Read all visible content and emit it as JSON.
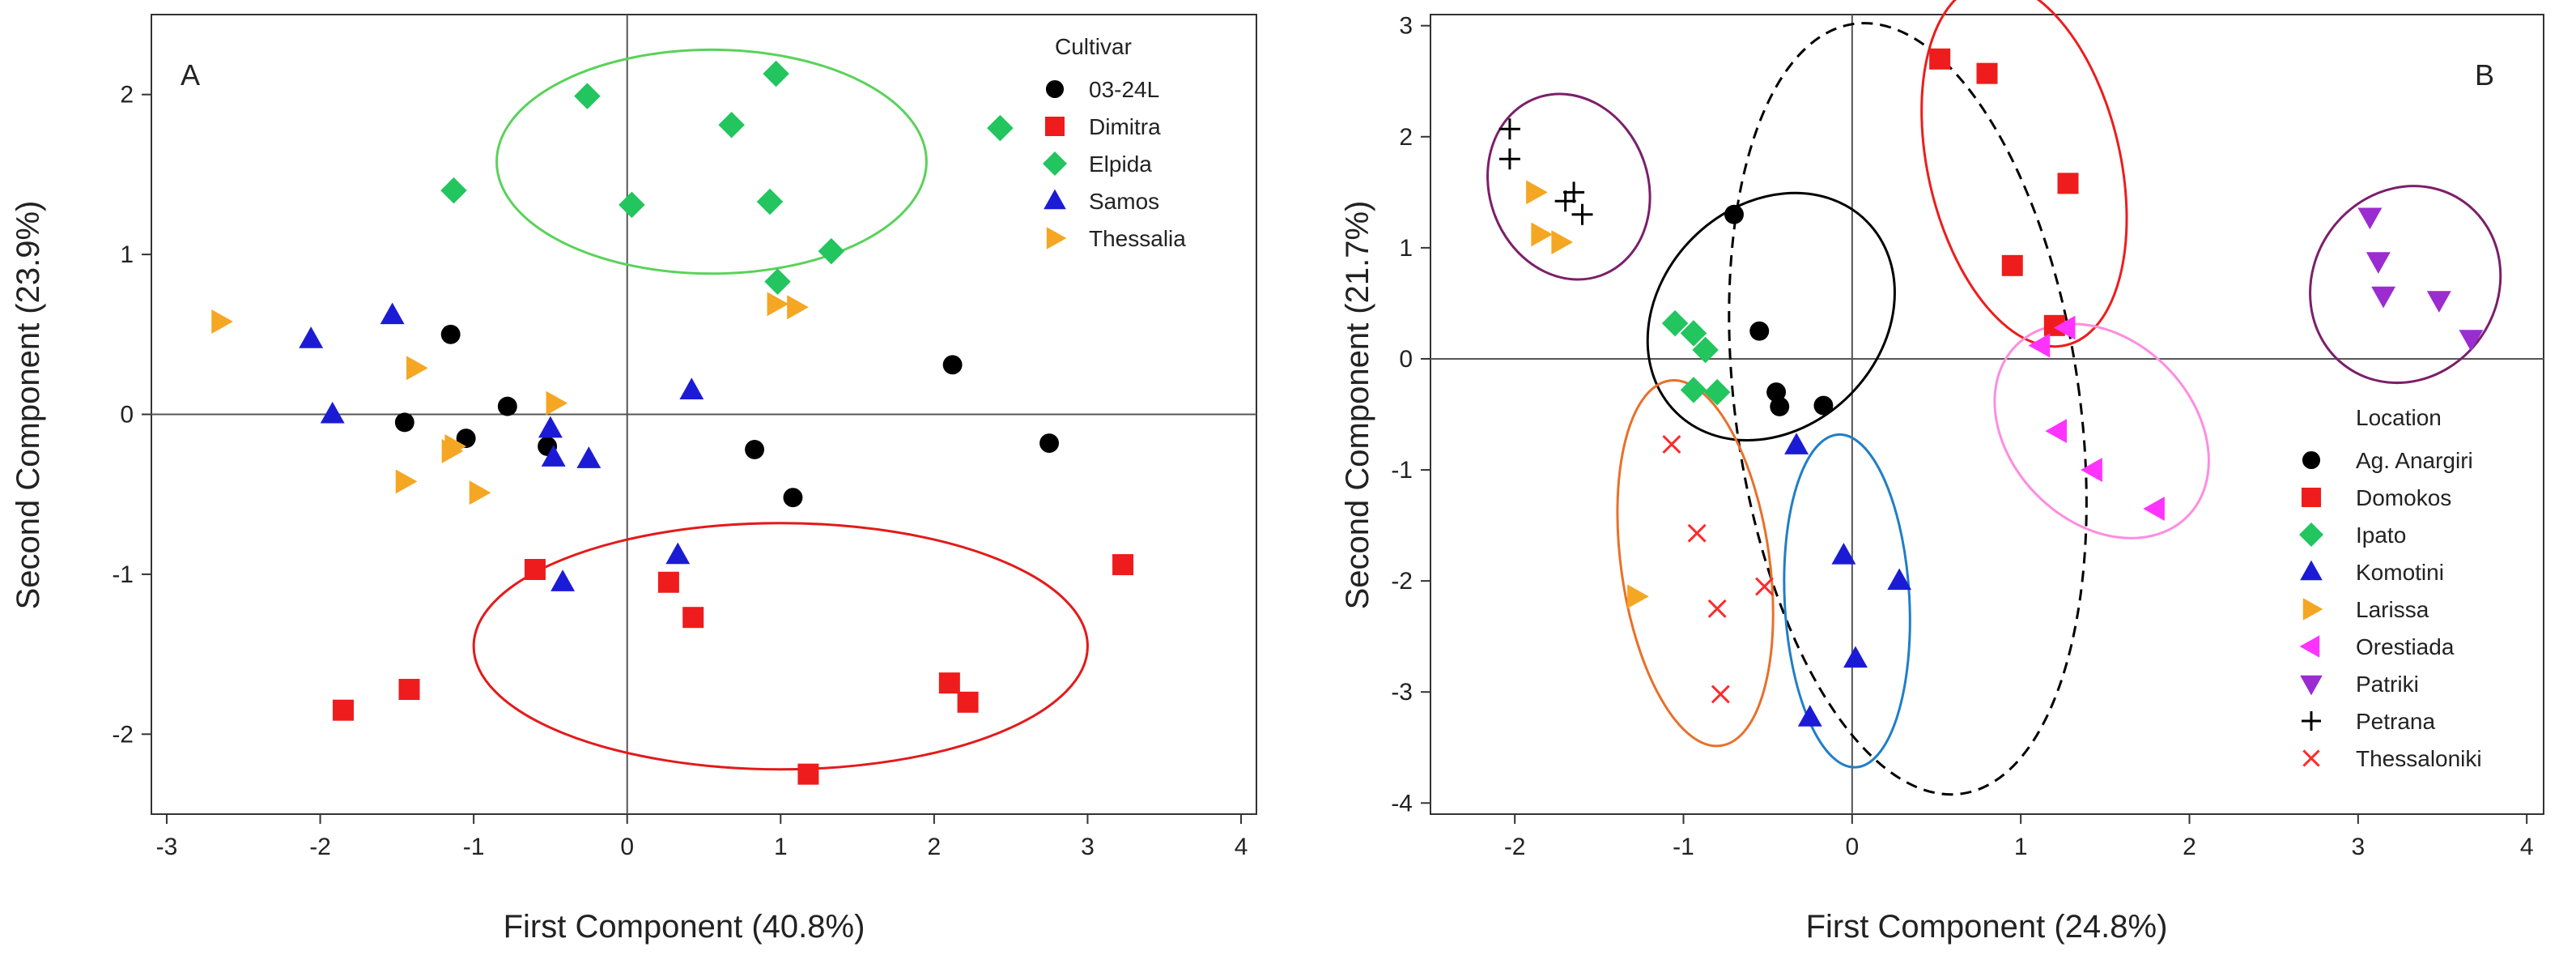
{
  "chart_data": [
    {
      "type": "scatter",
      "panel_label": "A",
      "xlabel": "First Component (40.8%)",
      "ylabel": "Second Component (23.9%)",
      "xlim": [
        -3.1,
        4.1
      ],
      "ylim": [
        -2.5,
        2.5
      ],
      "xticks": [
        -3,
        -2,
        -1,
        0,
        1,
        2,
        3,
        4
      ],
      "yticks": [
        -2,
        -1,
        0,
        1,
        2
      ],
      "legend_title": "Cultivar",
      "legend_position": "top-right",
      "series": [
        {
          "name": "03-24L",
          "marker": "circle",
          "color": "#000000",
          "points": [
            [
              -1.15,
              0.5
            ],
            [
              -0.78,
              0.05
            ],
            [
              -1.45,
              -0.05
            ],
            [
              -1.05,
              -0.15
            ],
            [
              -0.52,
              -0.2
            ],
            [
              0.83,
              -0.22
            ],
            [
              1.08,
              -0.52
            ],
            [
              2.12,
              0.31
            ],
            [
              2.75,
              -0.18
            ]
          ]
        },
        {
          "name": "Dimitra",
          "marker": "square",
          "color": "#ee1c1c",
          "points": [
            [
              -1.85,
              -1.85
            ],
            [
              -1.42,
              -1.72
            ],
            [
              -0.6,
              -0.97
            ],
            [
              0.27,
              -1.05
            ],
            [
              0.43,
              -1.27
            ],
            [
              1.18,
              -2.25
            ],
            [
              2.1,
              -1.68
            ],
            [
              2.22,
              -1.8
            ],
            [
              3.23,
              -0.94
            ]
          ]
        },
        {
          "name": "Elpida",
          "marker": "diamond",
          "color": "#22c55e",
          "points": [
            [
              -1.13,
              1.4
            ],
            [
              -0.26,
              1.99
            ],
            [
              0.03,
              1.31
            ],
            [
              0.68,
              1.81
            ],
            [
              0.97,
              2.13
            ],
            [
              0.93,
              1.33
            ],
            [
              0.98,
              0.83
            ],
            [
              1.33,
              1.02
            ],
            [
              2.43,
              1.79
            ]
          ]
        },
        {
          "name": "Samos",
          "marker": "triangle-up",
          "color": "#1b1bd6",
          "points": [
            [
              -2.06,
              0.47
            ],
            [
              -1.92,
              0.0
            ],
            [
              -1.53,
              0.62
            ],
            [
              -0.5,
              -0.09
            ],
            [
              -0.48,
              -0.27
            ],
            [
              -0.25,
              -0.28
            ],
            [
              -0.42,
              -1.05
            ],
            [
              0.33,
              -0.88
            ],
            [
              0.42,
              0.15
            ]
          ]
        },
        {
          "name": "Thessalia",
          "marker": "triangle-right",
          "color": "#f5a623",
          "points": [
            [
              -2.65,
              0.58
            ],
            [
              -1.38,
              0.29
            ],
            [
              -1.13,
              -0.2
            ],
            [
              -1.15,
              -0.23
            ],
            [
              -0.97,
              -0.49
            ],
            [
              -1.45,
              -0.42
            ],
            [
              -0.47,
              0.07
            ],
            [
              0.97,
              0.69
            ],
            [
              1.1,
              0.67
            ]
          ]
        }
      ],
      "ellipses": [
        {
          "color": "#59d259",
          "style": "solid",
          "cx": 0.55,
          "cy": 1.58,
          "rx": 1.4,
          "ry": 0.7
        },
        {
          "color": "#e31a1a",
          "style": "solid",
          "cx": 1.0,
          "cy": -1.45,
          "rx": 2.0,
          "ry": 0.77
        }
      ]
    },
    {
      "type": "scatter",
      "panel_label": "B",
      "xlabel": "First Component (24.8%)",
      "ylabel": "Second Component (21.7%)",
      "xlim": [
        -2.5,
        4.1
      ],
      "ylim": [
        -4.1,
        3.1
      ],
      "xticks": [
        -2,
        -1,
        0,
        1,
        2,
        3,
        4
      ],
      "yticks": [
        -4,
        -3,
        -2,
        -1,
        0,
        1,
        2,
        3
      ],
      "legend_title": "Location",
      "legend_position": "bottom-right",
      "series": [
        {
          "name": "Ag. Anargiri",
          "marker": "circle",
          "color": "#000000",
          "points": [
            [
              -0.7,
              1.3
            ],
            [
              -0.55,
              0.25
            ],
            [
              -0.45,
              -0.3
            ],
            [
              -0.43,
              -0.43
            ],
            [
              -0.17,
              -0.42
            ]
          ]
        },
        {
          "name": "Domokos",
          "marker": "square",
          "color": "#ee1c1c",
          "points": [
            [
              0.52,
              2.7
            ],
            [
              0.8,
              2.57
            ],
            [
              1.28,
              1.58
            ],
            [
              0.95,
              0.84
            ],
            [
              1.2,
              0.3
            ]
          ]
        },
        {
          "name": "Ipato",
          "marker": "diamond",
          "color": "#22c55e",
          "points": [
            [
              -1.05,
              0.32
            ],
            [
              -0.94,
              0.23
            ],
            [
              -0.87,
              0.08
            ],
            [
              -0.94,
              -0.28
            ],
            [
              -0.8,
              -0.3
            ]
          ]
        },
        {
          "name": "Komotini",
          "marker": "triangle-up",
          "color": "#1b1bd6",
          "points": [
            [
              -0.33,
              -0.78
            ],
            [
              -0.05,
              -1.77
            ],
            [
              0.28,
              -2.0
            ],
            [
              0.02,
              -2.7
            ],
            [
              -0.25,
              -3.23
            ]
          ]
        },
        {
          "name": "Larissa",
          "marker": "triangle-right",
          "color": "#f5a623",
          "points": [
            [
              -1.88,
              1.5
            ],
            [
              -1.85,
              1.12
            ],
            [
              -1.73,
              1.05
            ],
            [
              -1.28,
              -2.14
            ]
          ]
        },
        {
          "name": "Orestiada",
          "marker": "triangle-left",
          "color": "#ff33ff",
          "points": [
            [
              1.12,
              0.12
            ],
            [
              1.27,
              0.28
            ],
            [
              1.22,
              -0.65
            ],
            [
              1.43,
              -1.0
            ],
            [
              1.8,
              -1.35
            ]
          ]
        },
        {
          "name": "Patriki",
          "marker": "triangle-down",
          "color": "#9b2ccf",
          "points": [
            [
              3.07,
              1.28
            ],
            [
              3.12,
              0.88
            ],
            [
              3.15,
              0.57
            ],
            [
              3.48,
              0.53
            ],
            [
              3.67,
              0.18
            ]
          ]
        },
        {
          "name": "Petrana",
          "marker": "plus",
          "color": "#000000",
          "points": [
            [
              -2.03,
              2.07
            ],
            [
              -2.03,
              1.8
            ],
            [
              -1.7,
              1.42
            ],
            [
              -1.65,
              1.5
            ],
            [
              -1.6,
              1.3
            ]
          ]
        },
        {
          "name": "Thessaloniki",
          "marker": "x",
          "color": "#ff2a2a",
          "points": [
            [
              -1.07,
              -0.77
            ],
            [
              -0.92,
              -1.57
            ],
            [
              -0.8,
              -2.25
            ],
            [
              -0.52,
              -2.05
            ],
            [
              -0.78,
              -3.02
            ]
          ]
        }
      ],
      "ellipses": [
        {
          "color": "#7b1f6a",
          "style": "solid",
          "cx": -1.68,
          "cy": 1.55,
          "rx": 0.47,
          "ry": 0.85,
          "angle": -20
        },
        {
          "color": "#000000",
          "style": "solid",
          "cx": -0.48,
          "cy": 0.38,
          "rx": 0.8,
          "ry": 1.0,
          "angle": -45
        },
        {
          "color": "#ee1c1c",
          "style": "solid",
          "cx": 1.02,
          "cy": 1.75,
          "rx": 0.57,
          "ry": 1.67,
          "angle": -13
        },
        {
          "color": "#000000",
          "style": "dashed",
          "cx": 0.33,
          "cy": -0.45,
          "rx": 1.02,
          "ry": 3.5,
          "angle": -8
        },
        {
          "color": "#ff8ce0",
          "style": "solid",
          "cx": 1.48,
          "cy": -0.65,
          "rx": 0.54,
          "ry": 1.09,
          "angle": -45
        },
        {
          "color": "#7b1f6a",
          "style": "solid",
          "cx": 3.28,
          "cy": 0.67,
          "rx": 0.6,
          "ry": 0.83,
          "angle": -55
        },
        {
          "color": "#e8702a",
          "style": "solid",
          "cx": -0.93,
          "cy": -1.84,
          "rx": 0.44,
          "ry": 1.66,
          "angle": -8
        },
        {
          "color": "#1f7ec8",
          "style": "solid",
          "cx": -0.03,
          "cy": -2.18,
          "rx": 0.37,
          "ry": 1.5,
          "angle": -3
        }
      ]
    }
  ]
}
